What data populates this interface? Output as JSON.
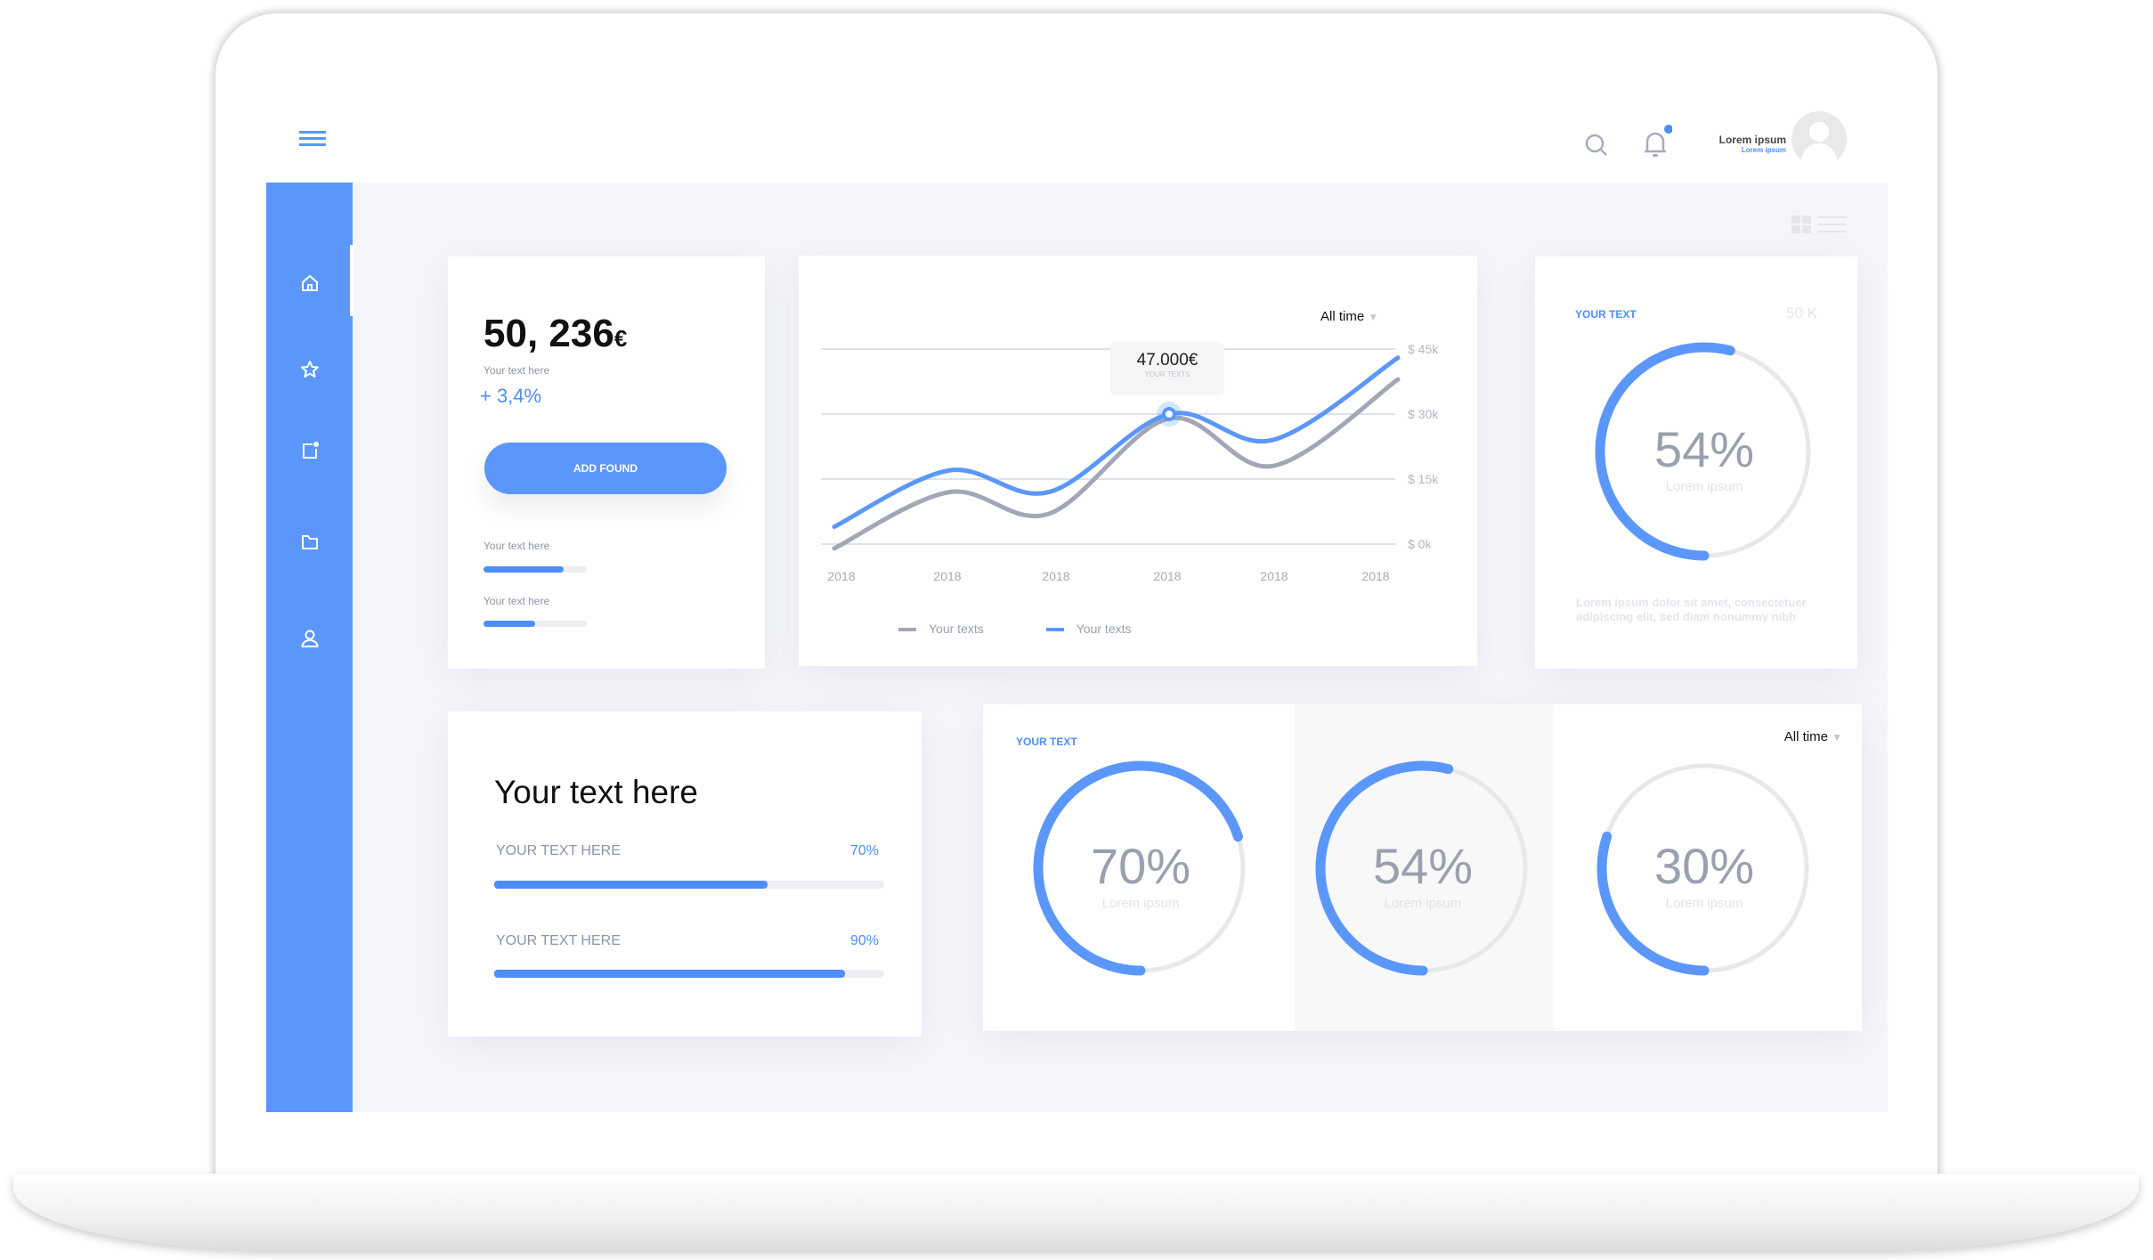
{
  "header": {
    "user_name": "Lorem ipsum",
    "user_role": "Lorem ipsum"
  },
  "colors": {
    "accent": "#5b97fb",
    "line_gray": "#a3a7b5",
    "track": "#e8e8e8"
  },
  "sidebar": {
    "items": [
      {
        "icon": "home-icon",
        "active": true
      },
      {
        "icon": "star-icon"
      },
      {
        "icon": "notes-icon"
      },
      {
        "icon": "folder-icon"
      },
      {
        "icon": "user-icon"
      }
    ]
  },
  "balance": {
    "amount": "50, 236",
    "currency": "€",
    "caption": "Your text here",
    "change": "+ 3,4%",
    "button": "ADD FOUND",
    "progress": [
      {
        "label": "Your text here",
        "value": 0.78
      },
      {
        "label": "Your text here",
        "value": 0.5
      }
    ]
  },
  "chart_card": {
    "filter": "All time",
    "tooltip": {
      "value": "47.000€",
      "label": "YOUR TEXTS"
    }
  },
  "chart_data": {
    "type": "line",
    "x": [
      "2018",
      "2018",
      "2018",
      "2018",
      "2018",
      "2018"
    ],
    "y_ticks": [
      "$ 45k",
      "$ 30k",
      "$ 15k",
      "$ 0k"
    ],
    "ylim": [
      0,
      45
    ],
    "grid": true,
    "legend_position": "bottom",
    "series": [
      {
        "name": "Your texts",
        "color": "#a3a7b5",
        "values": [
          -1,
          12,
          7,
          29,
          18,
          38
        ]
      },
      {
        "name": "Your texts",
        "color": "#5b97fb",
        "values": [
          4,
          17,
          12,
          30,
          24,
          43
        ]
      }
    ]
  },
  "gauge_card": {
    "title": "YOUR TEXT",
    "right_value": "50 K",
    "percent_label": "54%",
    "percent": 54,
    "sub": "Lorem ipsum",
    "description": "Lorem ipsum dolor sit amet, consectetuer adipiscing elit, sed diam nonummy nibh"
  },
  "text_card": {
    "title": "Your text here",
    "rows": [
      {
        "label": "YOUR TEXT HERE",
        "value_label": "70%",
        "value": 0.7
      },
      {
        "label": "YOUR TEXT HERE",
        "value_label": "90%",
        "value": 0.9
      }
    ]
  },
  "gauges_card": {
    "title": "YOUR TEXT",
    "filter": "All time",
    "gauges": [
      {
        "label": "70%",
        "percent": 70,
        "sub": "Lorem ipsum"
      },
      {
        "label": "54%",
        "percent": 54,
        "sub": "Lorem ipsum"
      },
      {
        "label": "30%",
        "percent": 30,
        "sub": "Lorem ipsum"
      }
    ]
  }
}
